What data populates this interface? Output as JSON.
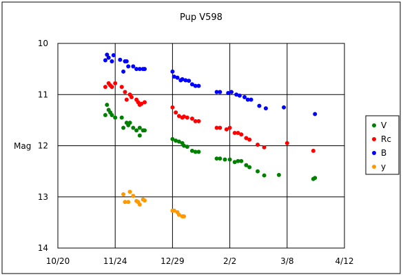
{
  "chart_data": {
    "type": "scatter",
    "title": "Pup V598",
    "xlabel": "",
    "ylabel": "Mag",
    "x_ticks": [
      "10/20",
      "11/24",
      "12/29",
      "2/2",
      "3/8",
      "4/12"
    ],
    "x_tick_days": [
      0,
      35,
      70,
      105,
      140,
      175
    ],
    "xlim": [
      0,
      175
    ],
    "y_ticks": [
      10,
      11,
      12,
      13,
      14
    ],
    "ylim": [
      10,
      14
    ],
    "y_inverted": true,
    "grid": true,
    "legend_position": "right",
    "series": [
      {
        "name": "V",
        "color": "#008000",
        "points": [
          [
            29,
            11.4
          ],
          [
            30,
            11.2
          ],
          [
            31,
            11.3
          ],
          [
            32,
            11.35
          ],
          [
            33,
            11.4
          ],
          [
            35,
            11.45
          ],
          [
            39,
            11.45
          ],
          [
            40,
            11.65
          ],
          [
            42,
            11.55
          ],
          [
            43,
            11.6
          ],
          [
            44,
            11.55
          ],
          [
            46,
            11.65
          ],
          [
            48,
            11.7
          ],
          [
            50,
            11.8
          ],
          [
            50,
            11.65
          ],
          [
            52,
            11.7
          ],
          [
            53,
            11.7
          ],
          [
            70,
            11.87
          ],
          [
            72,
            11.9
          ],
          [
            74,
            11.92
          ],
          [
            76,
            11.95
          ],
          [
            77,
            12.0
          ],
          [
            79,
            12.02
          ],
          [
            82,
            12.1
          ],
          [
            84,
            12.12
          ],
          [
            86,
            12.12
          ],
          [
            97,
            12.25
          ],
          [
            99,
            12.25
          ],
          [
            102,
            12.27
          ],
          [
            105,
            12.27
          ],
          [
            108,
            12.32
          ],
          [
            110,
            12.3
          ],
          [
            112,
            12.3
          ],
          [
            115,
            12.38
          ],
          [
            117,
            12.42
          ],
          [
            122,
            12.5
          ],
          [
            126,
            12.58
          ],
          [
            135,
            12.57
          ],
          [
            156,
            12.65
          ],
          [
            157,
            12.63
          ]
        ]
      },
      {
        "name": "Rc",
        "color": "#ff0000",
        "points": [
          [
            29,
            10.85
          ],
          [
            31,
            10.78
          ],
          [
            32,
            10.82
          ],
          [
            33,
            10.85
          ],
          [
            35,
            10.78
          ],
          [
            39,
            10.85
          ],
          [
            41,
            10.95
          ],
          [
            42,
            11.1
          ],
          [
            44,
            11.0
          ],
          [
            45,
            11.05
          ],
          [
            48,
            11.1
          ],
          [
            49,
            11.15
          ],
          [
            50,
            11.2
          ],
          [
            51,
            11.18
          ],
          [
            53,
            11.15
          ],
          [
            70,
            11.25
          ],
          [
            72,
            11.35
          ],
          [
            74,
            11.42
          ],
          [
            76,
            11.45
          ],
          [
            77,
            11.43
          ],
          [
            79,
            11.45
          ],
          [
            82,
            11.47
          ],
          [
            84,
            11.52
          ],
          [
            86,
            11.52
          ],
          [
            97,
            11.65
          ],
          [
            99,
            11.65
          ],
          [
            103,
            11.68
          ],
          [
            105,
            11.65
          ],
          [
            108,
            11.75
          ],
          [
            110,
            11.75
          ],
          [
            112,
            11.78
          ],
          [
            115,
            11.85
          ],
          [
            117,
            11.88
          ],
          [
            122,
            11.98
          ],
          [
            126,
            12.03
          ],
          [
            140,
            11.95
          ],
          [
            156,
            12.1
          ]
        ]
      },
      {
        "name": "B",
        "color": "#0000ff",
        "points": [
          [
            29,
            10.33
          ],
          [
            30,
            10.22
          ],
          [
            31,
            10.28
          ],
          [
            33,
            10.35
          ],
          [
            34,
            10.23
          ],
          [
            38,
            10.32
          ],
          [
            40,
            10.55
          ],
          [
            41,
            10.35
          ],
          [
            42,
            10.35
          ],
          [
            43,
            10.45
          ],
          [
            46,
            10.45
          ],
          [
            48,
            10.5
          ],
          [
            50,
            10.5
          ],
          [
            52,
            10.5
          ],
          [
            53,
            10.5
          ],
          [
            70,
            10.55
          ],
          [
            71,
            10.65
          ],
          [
            73,
            10.67
          ],
          [
            75,
            10.72
          ],
          [
            76,
            10.7
          ],
          [
            78,
            10.72
          ],
          [
            80,
            10.73
          ],
          [
            82,
            10.8
          ],
          [
            84,
            10.83
          ],
          [
            86,
            10.83
          ],
          [
            97,
            10.95
          ],
          [
            99,
            10.95
          ],
          [
            104,
            10.97
          ],
          [
            106,
            10.95
          ],
          [
            109,
            11.0
          ],
          [
            111,
            11.02
          ],
          [
            114,
            11.05
          ],
          [
            116,
            11.1
          ],
          [
            118,
            11.1
          ],
          [
            123,
            11.22
          ],
          [
            127,
            11.27
          ],
          [
            138,
            11.25
          ],
          [
            157,
            11.38
          ]
        ]
      },
      {
        "name": "y",
        "color": "#ff9900",
        "points": [
          [
            40,
            12.95
          ],
          [
            41,
            13.1
          ],
          [
            43,
            13.1
          ],
          [
            44,
            12.9
          ],
          [
            46,
            12.98
          ],
          [
            48,
            13.08
          ],
          [
            49,
            13.1
          ],
          [
            50,
            13.15
          ],
          [
            52,
            13.05
          ],
          [
            53,
            13.07
          ],
          [
            70,
            13.27
          ],
          [
            71,
            13.27
          ],
          [
            73,
            13.3
          ],
          [
            74,
            13.35
          ],
          [
            76,
            13.38
          ],
          [
            77,
            13.38
          ]
        ]
      }
    ]
  }
}
